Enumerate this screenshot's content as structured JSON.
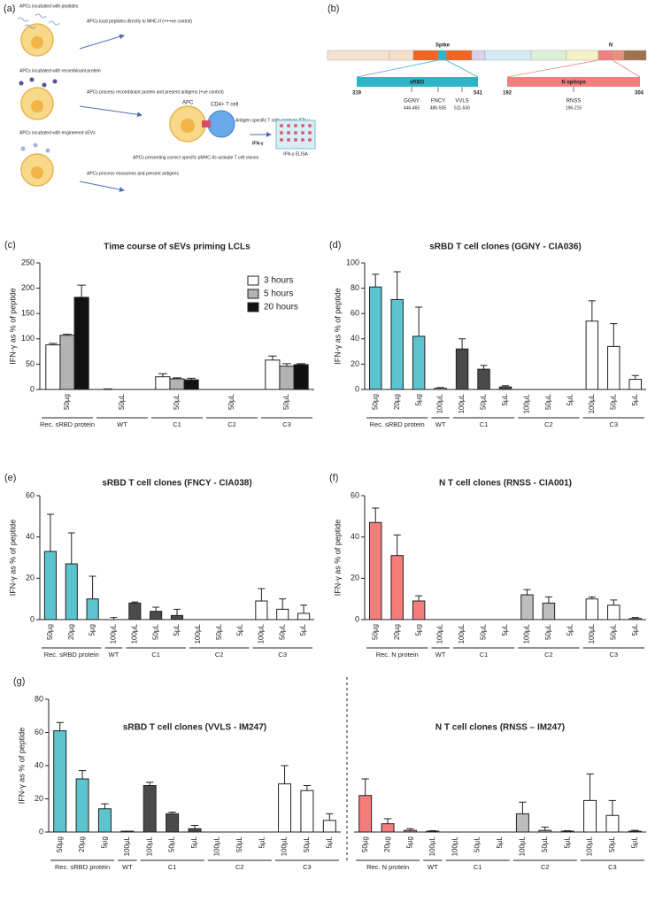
{
  "panel_a": {
    "label": "(a)",
    "row1": "APCs incubated with peptides",
    "row1_note": "APCs load peptides directly to MHC-II (+++ve control)",
    "row2": "APCs incubated with recombinant protein",
    "row2_note": "APCs process recombinant protein and present antigens (+ve control)",
    "row3": "APCs incubated with engineered sEVs",
    "row3_note": "APCs process exosomes and present antigens",
    "apc": "APC",
    "tcell": "CD4+ T cell",
    "tcell_note": "Antigen specific T cells produce IFN-γ",
    "ifn": "IFN-γ",
    "activation": "APCs presenting correct specific pMHC-IIs activate T cell clones",
    "elisa": "IFN-γ ELISA"
  },
  "panel_b": {
    "label": "(b)",
    "spike": "Spike",
    "n": "N",
    "srbd": "sRBD",
    "srbd_start": "319",
    "srbd_end": "541",
    "epitopes": [
      {
        "name": "GGNY",
        "range": "446-465"
      },
      {
        "name": "FNCY",
        "range": "486-505"
      },
      {
        "name": "VVLS",
        "range": "511-530"
      }
    ],
    "n_epitope": "N epitope",
    "n_start": "192",
    "n_end": "304",
    "n_site": {
      "name": "RNSS",
      "range": "196-215"
    }
  },
  "chart_data": [
    {
      "type": "bar",
      "panel": "(c)",
      "title": "Time course of sEVs priming LCLs",
      "ylabel": "IFN-γ as % of peptide",
      "ylim": [
        0,
        250
      ],
      "yticks": [
        0,
        50,
        100,
        150,
        200,
        250
      ],
      "legend": "upper right",
      "groups": [
        {
          "name": "Rec. sRBD protein",
          "categories": [
            "50µg"
          ]
        },
        {
          "name": "WT",
          "categories": [
            "50µL"
          ]
        },
        {
          "name": "C1",
          "categories": [
            "50µL"
          ]
        },
        {
          "name": "C2",
          "categories": [
            "50µL"
          ]
        },
        {
          "name": "C3",
          "categories": [
            "50µL"
          ]
        }
      ],
      "series": [
        {
          "name": "3 hours",
          "color": "#ffffff",
          "values": [
            88,
            0,
            25,
            0,
            58
          ],
          "errors": [
            3,
            1,
            6,
            0,
            8
          ]
        },
        {
          "name": "5 hours",
          "color": "#b3b3b3",
          "values": [
            107,
            0,
            21,
            0,
            46
          ],
          "errors": [
            2,
            0,
            2,
            0,
            5
          ]
        },
        {
          "name": "20 hours",
          "color": "#111111",
          "values": [
            182,
            0,
            19,
            0,
            49
          ],
          "errors": [
            24,
            0,
            3,
            0,
            2
          ]
        }
      ]
    },
    {
      "type": "bar",
      "panel": "(d)",
      "title": "sRBD T cell clones (GGNY - CIA036)",
      "ylabel": "IFN-γ as % of peptide",
      "ylim": [
        0,
        100
      ],
      "yticks": [
        0,
        20,
        40,
        60,
        80,
        100
      ],
      "groups": [
        {
          "name": "Rec. sRBD protein",
          "categories": [
            "50µg",
            "20µg",
            "5µg"
          ]
        },
        {
          "name": "WT",
          "categories": [
            "100µL"
          ]
        },
        {
          "name": "C1",
          "categories": [
            "100µL",
            "50µL",
            "5µL"
          ]
        },
        {
          "name": "C2",
          "categories": [
            "100µL",
            "50µL",
            "5µL"
          ]
        },
        {
          "name": "C3",
          "categories": [
            "100µL",
            "50µL",
            "5µL"
          ]
        }
      ],
      "series": [
        {
          "values": [
            81,
            71,
            42,
            1,
            32,
            16,
            2,
            0,
            0,
            0,
            54,
            34,
            8
          ],
          "errors": [
            10,
            22,
            23,
            0.5,
            8,
            3,
            1,
            0,
            0,
            0,
            16,
            18,
            3
          ],
          "colors": [
            "#5bc4cf",
            "#5bc4cf",
            "#5bc4cf",
            "#ffffff",
            "#4a4a4a",
            "#4a4a4a",
            "#4a4a4a",
            "#bdbdbd",
            "#bdbdbd",
            "#bdbdbd",
            "#ffffff",
            "#ffffff",
            "#ffffff"
          ]
        }
      ]
    },
    {
      "type": "bar",
      "panel": "(e)",
      "title": "sRBD T cell clones (FNCY - CIA038)",
      "ylabel": "IFN-γ as % of peptide",
      "ylim": [
        0,
        60
      ],
      "yticks": [
        0,
        20,
        40,
        60
      ],
      "groups": [
        {
          "name": "Rec. sRBD protein",
          "categories": [
            "50µg",
            "20µg",
            "5µg"
          ]
        },
        {
          "name": "WT",
          "categories": [
            "100µL"
          ]
        },
        {
          "name": "C1",
          "categories": [
            "100µL",
            "50µL",
            "5µL"
          ]
        },
        {
          "name": "C2",
          "categories": [
            "100µL",
            "50µL",
            "5µL"
          ]
        },
        {
          "name": "C3",
          "categories": [
            "100µL",
            "50µL",
            "5µL"
          ]
        }
      ],
      "series": [
        {
          "values": [
            33,
            27,
            10,
            0,
            8,
            4,
            2,
            0,
            0,
            0,
            9,
            5,
            3
          ],
          "errors": [
            18,
            15,
            11,
            1,
            0.5,
            2,
            3,
            0,
            0,
            0,
            6,
            5,
            4
          ],
          "colors": [
            "#5bc4cf",
            "#5bc4cf",
            "#5bc4cf",
            "#ffffff",
            "#4a4a4a",
            "#4a4a4a",
            "#4a4a4a",
            "#bdbdbd",
            "#bdbdbd",
            "#bdbdbd",
            "#ffffff",
            "#ffffff",
            "#ffffff"
          ]
        }
      ]
    },
    {
      "type": "bar",
      "panel": "(f)",
      "title": "N T cell clones (RNSS - CIA001)",
      "ylabel": "IFN-γ as % of peptide",
      "ylim": [
        0,
        60
      ],
      "yticks": [
        0,
        20,
        40,
        60
      ],
      "groups": [
        {
          "name": "Rec. N protein",
          "categories": [
            "50µg",
            "20µg",
            "5µg"
          ]
        },
        {
          "name": "WT",
          "categories": [
            "100µL"
          ]
        },
        {
          "name": "C1",
          "categories": [
            "100µL",
            "50µL",
            "5µL"
          ]
        },
        {
          "name": "C2",
          "categories": [
            "100µL",
            "50µL",
            "5µL"
          ]
        },
        {
          "name": "C3",
          "categories": [
            "100µL",
            "50µL",
            "5µL"
          ]
        }
      ],
      "series": [
        {
          "values": [
            47,
            31,
            9,
            0,
            0,
            0,
            0,
            12,
            8,
            0,
            10,
            7,
            0.5
          ],
          "errors": [
            7,
            10,
            2.5,
            0,
            0,
            0,
            0,
            2.5,
            3,
            0,
            1,
            2.5,
            0.5
          ],
          "colors": [
            "#f47c7c",
            "#f47c7c",
            "#f47c7c",
            "#ffffff",
            "#4a4a4a",
            "#4a4a4a",
            "#4a4a4a",
            "#bdbdbd",
            "#bdbdbd",
            "#bdbdbd",
            "#ffffff",
            "#ffffff",
            "#ffffff"
          ]
        }
      ]
    },
    {
      "type": "bar",
      "panel": "(g)",
      "title": "sRBD T cell clones (VVLS - IM247)",
      "ylabel": "IFN-γ as % of peptide",
      "ylim": [
        0,
        80
      ],
      "yticks": [
        0,
        20,
        40,
        60,
        80
      ],
      "groups": [
        {
          "name": "Rec. sRBD protein",
          "categories": [
            "50µg",
            "20µg",
            "5µg"
          ]
        },
        {
          "name": "WT",
          "categories": [
            "100µL"
          ]
        },
        {
          "name": "C1",
          "categories": [
            "100µL",
            "50µL",
            "5µL"
          ]
        },
        {
          "name": "C2",
          "categories": [
            "100µL",
            "50µL",
            "5µL"
          ]
        },
        {
          "name": "C3",
          "categories": [
            "100µL",
            "50µL",
            "5µL"
          ]
        }
      ],
      "series": [
        {
          "values": [
            61,
            32,
            14,
            0.5,
            28,
            11,
            2,
            0,
            0,
            0,
            29,
            25,
            7
          ],
          "errors": [
            5,
            5,
            3,
            0,
            2,
            1,
            2,
            0,
            0,
            0,
            11,
            3,
            4
          ],
          "colors": [
            "#5bc4cf",
            "#5bc4cf",
            "#5bc4cf",
            "#ffffff",
            "#4a4a4a",
            "#4a4a4a",
            "#4a4a4a",
            "#bdbdbd",
            "#bdbdbd",
            "#bdbdbd",
            "#ffffff",
            "#ffffff",
            "#ffffff"
          ]
        }
      ]
    },
    {
      "type": "bar",
      "title": "N T cell clones (RNSS – IM247)",
      "ylim": [
        0,
        80
      ],
      "groups": [
        {
          "name": "Rec. N protein",
          "categories": [
            "50µg",
            "20µg",
            "5µg"
          ]
        },
        {
          "name": "WT",
          "categories": [
            "100µL"
          ]
        },
        {
          "name": "C1",
          "categories": [
            "100µL",
            "50µL",
            "5µL"
          ]
        },
        {
          "name": "C2",
          "categories": [
            "100µL",
            "50µL",
            "5µL"
          ]
        },
        {
          "name": "C3",
          "categories": [
            "100µL",
            "50µL",
            "5µL"
          ]
        }
      ],
      "series": [
        {
          "values": [
            22,
            5,
            1,
            0.5,
            0,
            0,
            0,
            11,
            1,
            0.5,
            19,
            10,
            0.5
          ],
          "errors": [
            10,
            3,
            1,
            0.3,
            0,
            0,
            0,
            7,
            2,
            0.3,
            16,
            9,
            0.5
          ],
          "colors": [
            "#f47c7c",
            "#f47c7c",
            "#f47c7c",
            "#ffffff",
            "#4a4a4a",
            "#4a4a4a",
            "#4a4a4a",
            "#bdbdbd",
            "#bdbdbd",
            "#bdbdbd",
            "#ffffff",
            "#ffffff",
            "#ffffff"
          ]
        }
      ]
    }
  ]
}
